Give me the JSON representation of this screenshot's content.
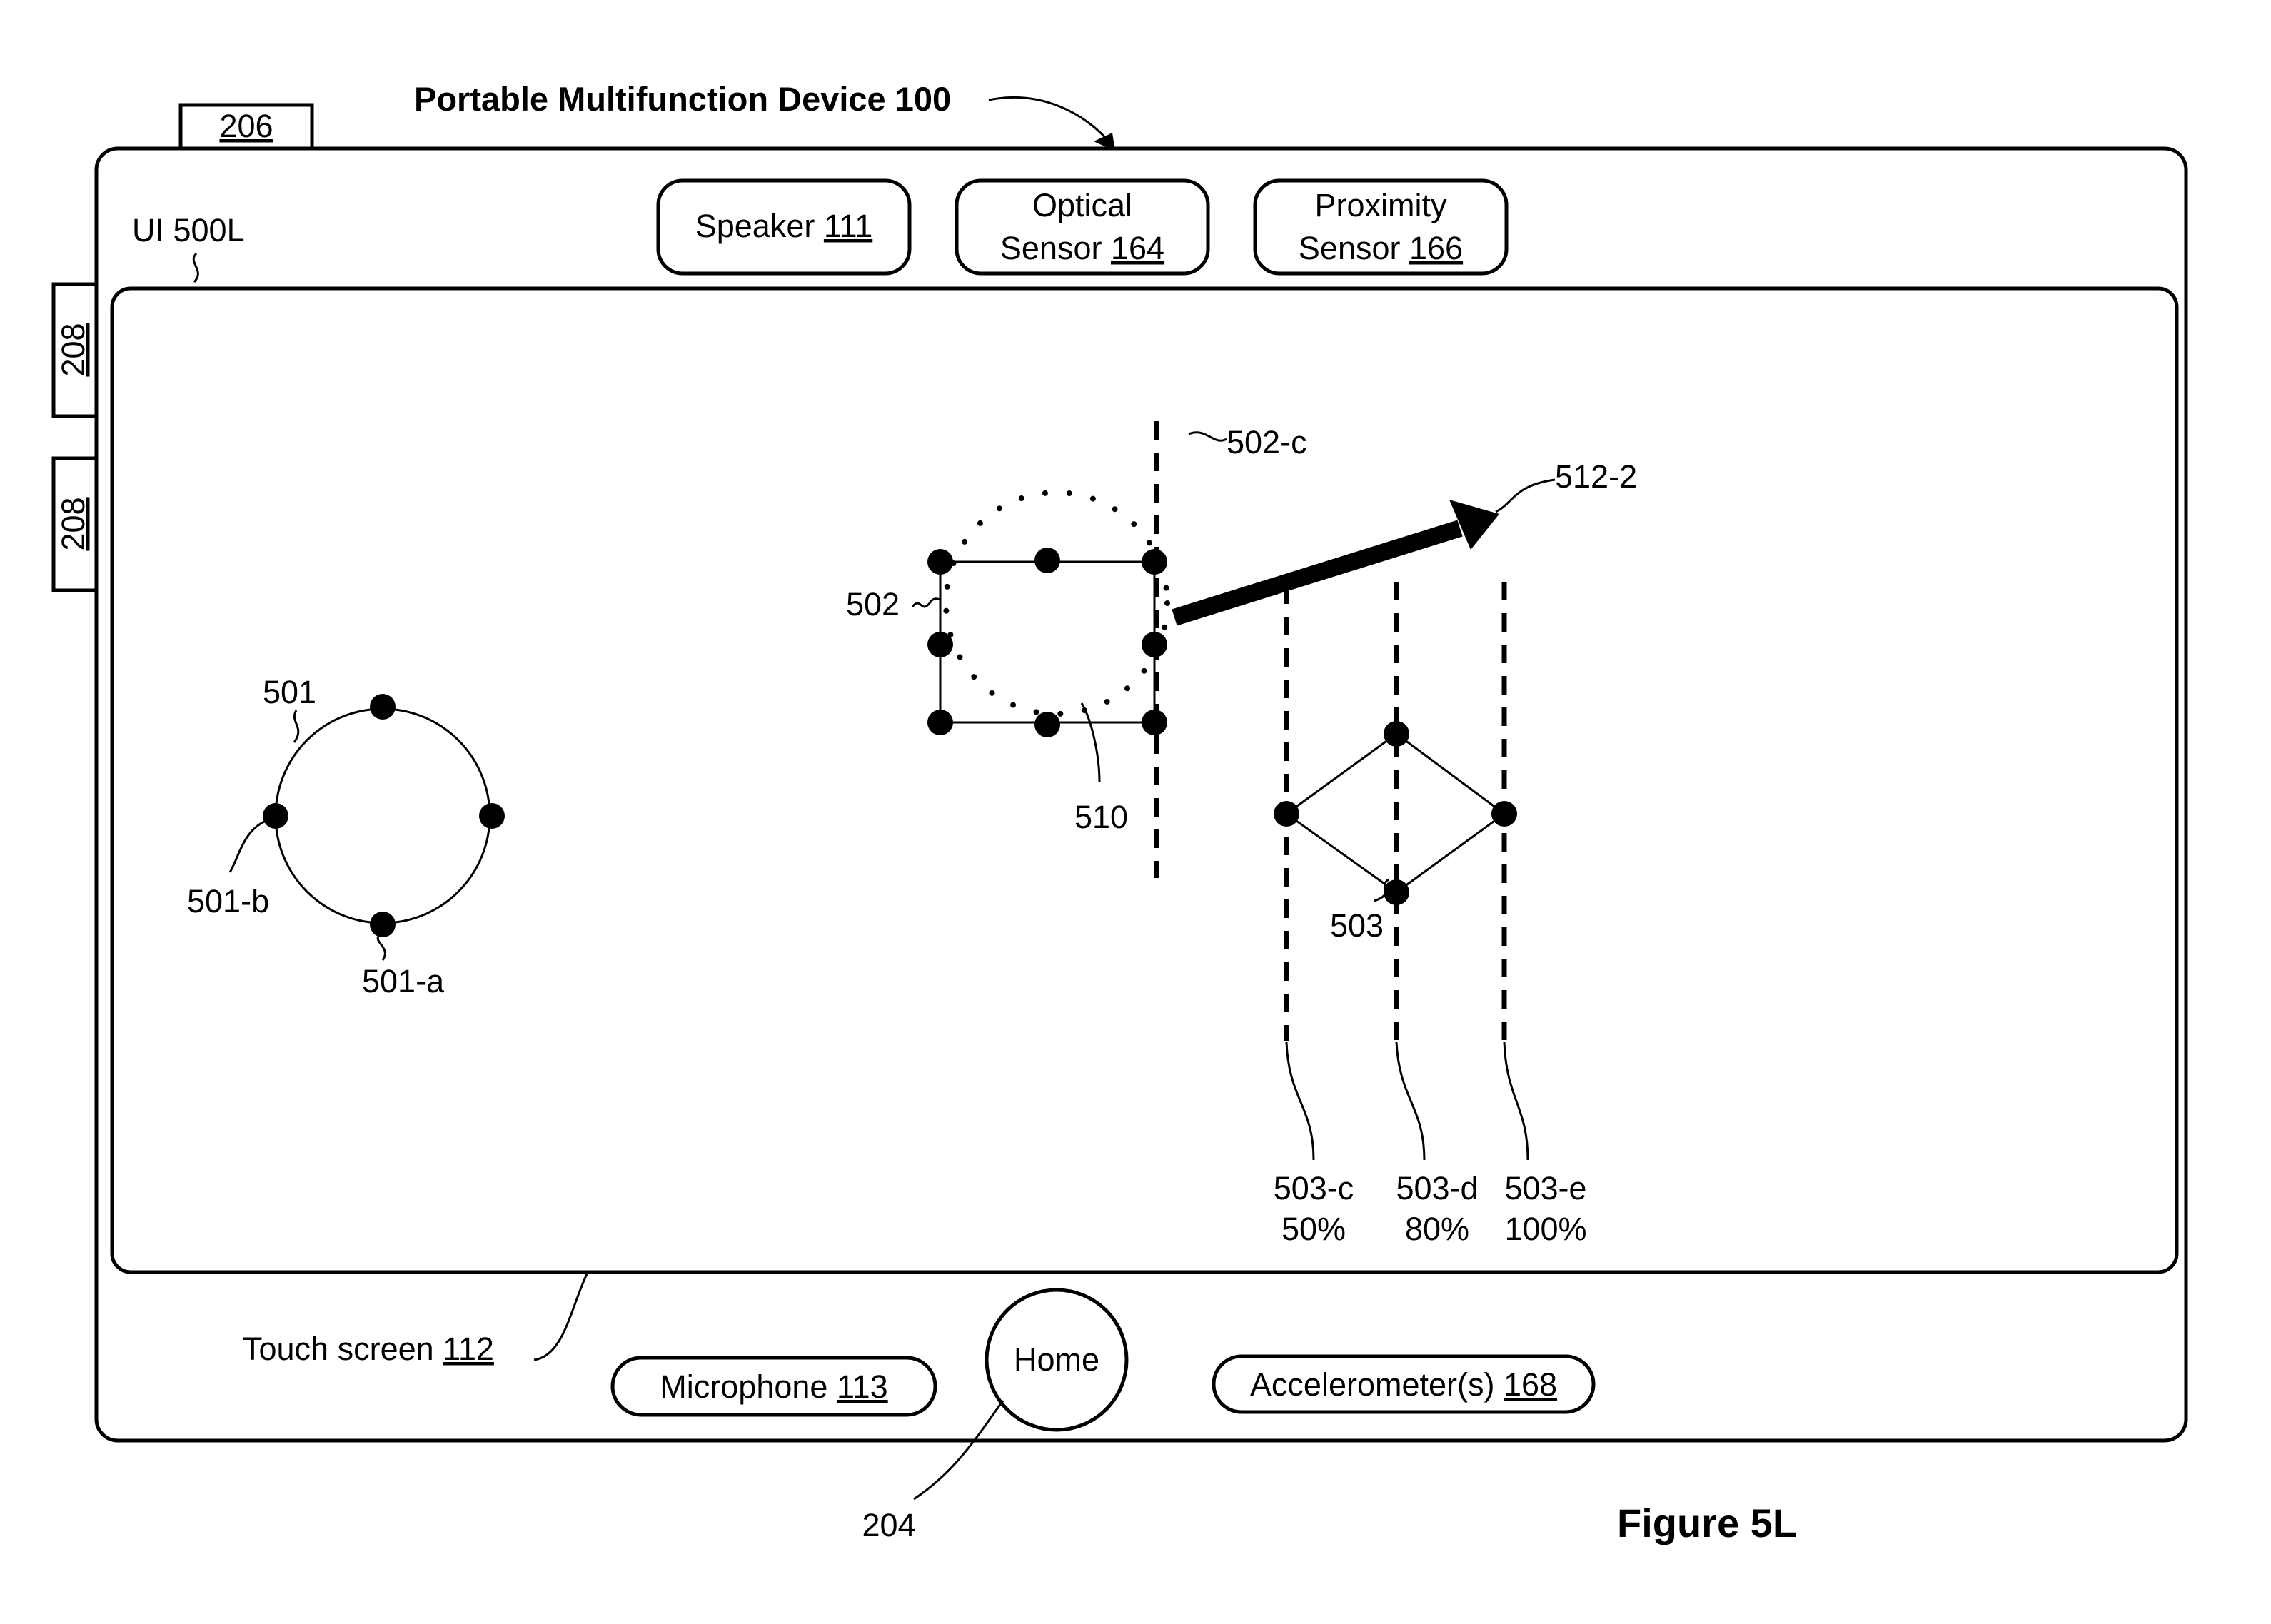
{
  "title": "Portable Multifunction Device 100",
  "figure_label": "Figure 5L",
  "side_tabs": {
    "top_button": "206",
    "volume_1": "208",
    "volume_2": "208"
  },
  "ui_label": "UI 500L",
  "hardware": {
    "speaker": {
      "text": "Speaker ",
      "ref": "111"
    },
    "optical_sensor": {
      "line1": "Optical",
      "line2": "Sensor ",
      "ref": "164"
    },
    "proximity_sensor": {
      "line1": "Proximity",
      "line2": "Sensor ",
      "ref": "166"
    },
    "touch_screen": {
      "text": "Touch screen ",
      "ref": "112"
    },
    "microphone": {
      "text": "Microphone ",
      "ref": "113"
    },
    "home": "Home",
    "home_ref": "204",
    "accelerometers": {
      "text": "Accelerometer(s) ",
      "ref": "168"
    }
  },
  "refs": {
    "circle": "501",
    "circle_handle_a": "501-a",
    "circle_handle_b": "501-b",
    "rectangle": "502",
    "snap_line": "502-c",
    "arrow": "512-2",
    "selection": "510",
    "diamond": "503",
    "line_c": {
      "name": "503-c",
      "percent": "50%"
    },
    "line_d": {
      "name": "503-d",
      "percent": "80%"
    },
    "line_e": {
      "name": "503-e",
      "percent": "100%"
    }
  }
}
